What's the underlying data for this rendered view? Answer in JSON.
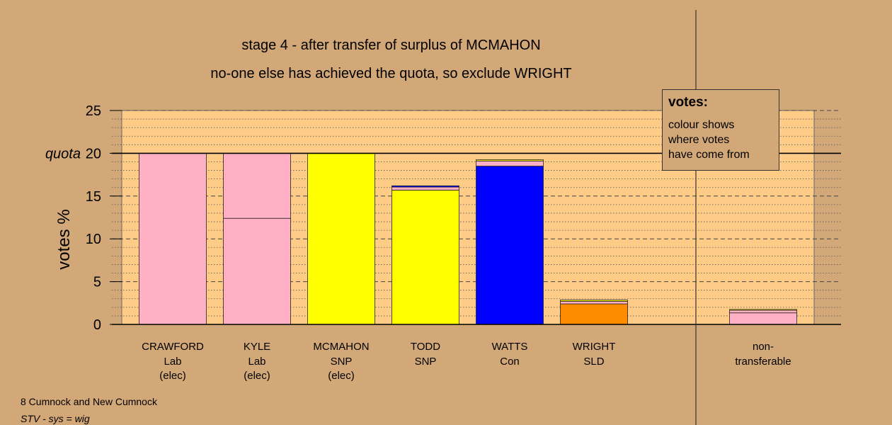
{
  "chart_data": {
    "type": "bar",
    "stacked": true,
    "title": "stage 4 - after transfer of surplus of MCMAHON",
    "subtitle": "no-one else has achieved the quota, so exclude WRIGHT",
    "ylabel": "votes %",
    "ylim": [
      0,
      25
    ],
    "yticks": [
      0,
      5,
      10,
      15,
      20,
      25
    ],
    "quota": 20,
    "quota_label": "quota",
    "grid": true,
    "legend_placement": "top-right",
    "candidates": [
      {
        "name": "CRAWFORD",
        "party": "Lab",
        "status": "(elec)",
        "segments": [
          {
            "value": 20.0,
            "color": "#ffb0c4"
          }
        ]
      },
      {
        "name": "KYLE",
        "party": "Lab",
        "status": "(elec)",
        "segments": [
          {
            "value": 12.4,
            "color": "#ffb0c4"
          },
          {
            "value": 7.6,
            "color": "#ffb0c4"
          }
        ]
      },
      {
        "name": "MCMAHON",
        "party": "SNP",
        "status": "(elec)",
        "segments": [
          {
            "value": 20.0,
            "color": "#ffff00"
          }
        ]
      },
      {
        "name": "TODD",
        "party": "SNP",
        "status": "",
        "segments": [
          {
            "value": 15.7,
            "color": "#ffff00"
          },
          {
            "value": 0.35,
            "color": "#ffb0c4"
          },
          {
            "value": 0.15,
            "color": "#0000ff"
          }
        ]
      },
      {
        "name": "WATTS",
        "party": "Con",
        "status": "",
        "segments": [
          {
            "value": 18.5,
            "color": "#0000ff"
          },
          {
            "value": 0.6,
            "color": "#ffb0c4"
          },
          {
            "value": 0.15,
            "color": "#ffff00"
          }
        ]
      },
      {
        "name": "WRIGHT",
        "party": "SLD",
        "status": "",
        "segments": [
          {
            "value": 2.4,
            "color": "#ff8c00"
          },
          {
            "value": 0.3,
            "color": "#ffb0c4"
          },
          {
            "value": 0.15,
            "color": "#ffff00"
          }
        ]
      }
    ],
    "non_transferable": {
      "label_line1": "non-",
      "label_line2": "transferable",
      "segments": [
        {
          "value": 1.35,
          "color": "#ffb0c4"
        },
        {
          "value": 0.3,
          "color": "#ffb0c4"
        },
        {
          "value": 0.1,
          "color": "#ffff00"
        }
      ]
    }
  },
  "legend": {
    "title": "votes:",
    "lines": [
      "colour shows",
      "where votes",
      "have come from"
    ]
  },
  "footer": {
    "line1": "8 Cumnock and New Cumnock",
    "line2": "STV - sys = wig"
  },
  "colors": {
    "background": "#d2a878",
    "plot_area": "#ffcc88"
  }
}
